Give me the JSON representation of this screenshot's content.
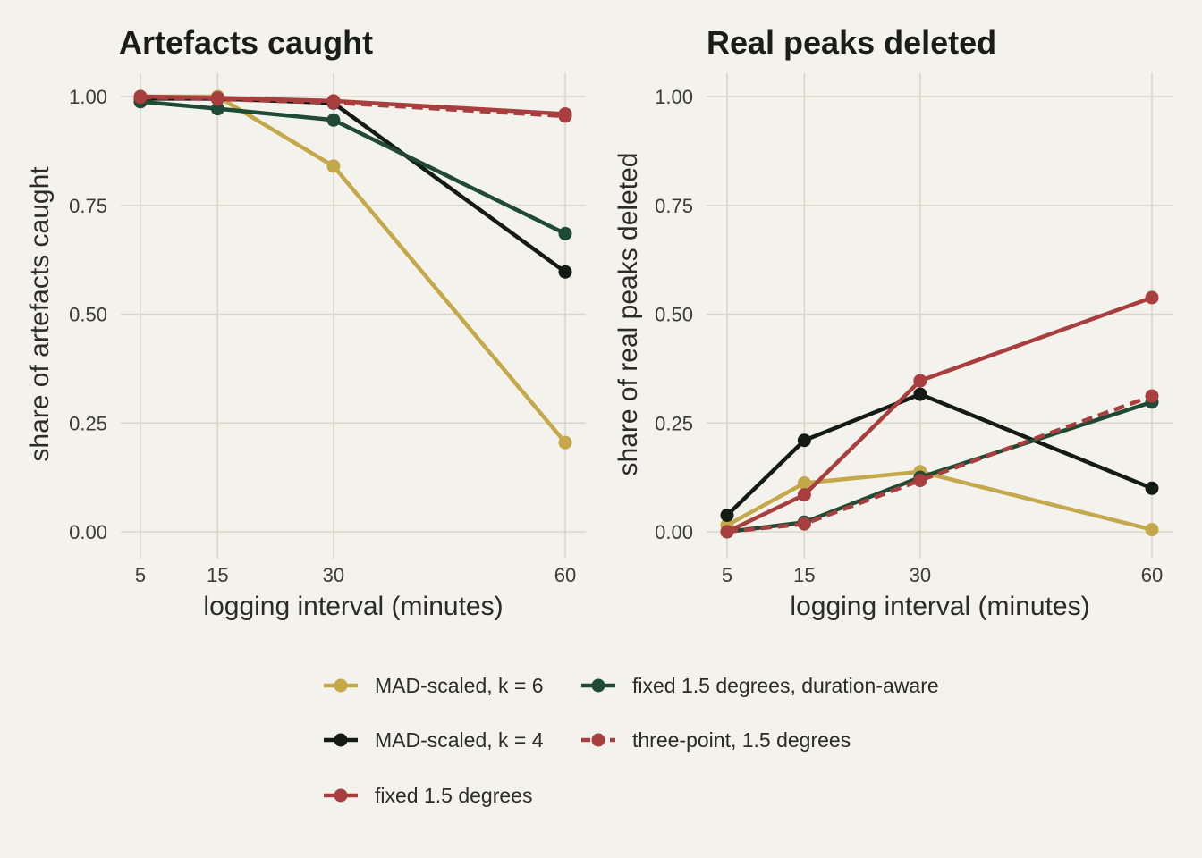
{
  "chart_data": [
    {
      "type": "line",
      "title": "Artefacts caught",
      "xlabel": "logging interval (minutes)",
      "ylabel": "share of artefacts caught",
      "x": [
        5,
        15,
        30,
        60
      ],
      "xticks": [
        "5",
        "15",
        "30",
        "60"
      ],
      "yticks": [
        "0.00",
        "0.25",
        "0.50",
        "0.75",
        "1.00"
      ],
      "ylim": [
        0,
        1
      ],
      "grid": true,
      "series": [
        {
          "name": "MAD-scaled, k = 6",
          "color": "#c4a84a",
          "dashed": false,
          "values": [
            1.0,
            1.0,
            0.84,
            0.205
          ]
        },
        {
          "name": "MAD-scaled, k = 4",
          "color": "#141a16",
          "dashed": false,
          "values": [
            0.995,
            0.995,
            0.985,
            0.597
          ]
        },
        {
          "name": "fixed 1.5 degrees, duration-aware",
          "color": "#1f4a33",
          "dashed": false,
          "values": [
            0.988,
            0.972,
            0.946,
            0.685
          ]
        },
        {
          "name": "three-point, 1.5 degrees",
          "color": "#a83e3e",
          "dashed": true,
          "values": [
            0.998,
            0.994,
            0.986,
            0.955
          ]
        },
        {
          "name": "fixed 1.5 degrees",
          "color": "#a83e3e",
          "dashed": false,
          "values": [
            1.0,
            0.997,
            0.99,
            0.96
          ]
        }
      ]
    },
    {
      "type": "line",
      "title": "Real peaks deleted",
      "xlabel": "logging interval (minutes)",
      "ylabel": "share of real peaks deleted",
      "x": [
        5,
        15,
        30,
        60
      ],
      "xticks": [
        "5",
        "15",
        "30",
        "60"
      ],
      "yticks": [
        "0.00",
        "0.25",
        "0.50",
        "0.75",
        "1.00"
      ],
      "ylim": [
        0,
        1
      ],
      "grid": true,
      "series": [
        {
          "name": "MAD-scaled, k = 6",
          "color": "#c4a84a",
          "dashed": false,
          "values": [
            0.015,
            0.112,
            0.138,
            0.005
          ]
        },
        {
          "name": "MAD-scaled, k = 4",
          "color": "#141a16",
          "dashed": false,
          "values": [
            0.038,
            0.21,
            0.316,
            0.1
          ]
        },
        {
          "name": "fixed 1.5 degrees, duration-aware",
          "color": "#1f4a33",
          "dashed": false,
          "values": [
            0.0,
            0.022,
            0.125,
            0.298
          ]
        },
        {
          "name": "three-point, 1.5 degrees",
          "color": "#a83e3e",
          "dashed": true,
          "values": [
            0.0,
            0.018,
            0.118,
            0.312
          ]
        },
        {
          "name": "fixed 1.5 degrees",
          "color": "#a83e3e",
          "dashed": false,
          "values": [
            0.0,
            0.085,
            0.347,
            0.538
          ]
        }
      ]
    }
  ],
  "legend": {
    "placement": "bottom",
    "items": [
      {
        "label": "MAD-scaled, k = 6",
        "color": "#c4a84a",
        "dashed": false
      },
      {
        "label": "fixed 1.5 degrees, duration-aware",
        "color": "#1f4a33",
        "dashed": false
      },
      {
        "label": "MAD-scaled, k = 4",
        "color": "#141a16",
        "dashed": false
      },
      {
        "label": "three-point, 1.5 degrees",
        "color": "#a83e3e",
        "dashed": true
      },
      {
        "label": "fixed 1.5 degrees",
        "color": "#a83e3e",
        "dashed": false
      }
    ]
  }
}
